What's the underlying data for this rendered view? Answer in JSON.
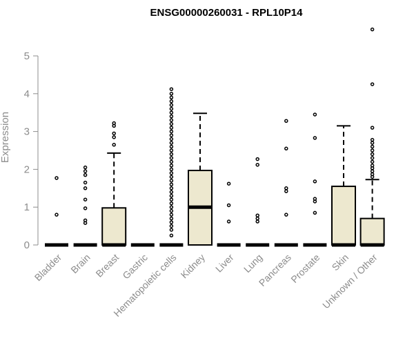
{
  "chart_data": {
    "type": "box",
    "title": "ENSG00000260031 - RPL10P14",
    "xlabel": "",
    "ylabel": "Expression",
    "ylim": [
      0,
      5.7
    ],
    "yticks": [
      "0",
      "1",
      "2",
      "3",
      "4",
      "5"
    ],
    "grid": false,
    "box_color": "#ede8cf",
    "categories": [
      "Bladder",
      "Brain",
      "Breast",
      "Gastric",
      "Hematopoietic cells",
      "Kidney",
      "Liver",
      "Lung",
      "Pancreas",
      "Prostate",
      "Skin",
      "Unknown / Other"
    ],
    "boxes": [
      {
        "q1": 0,
        "median": 0,
        "q3": 0,
        "whisker_low": 0,
        "whisker_high": 0,
        "outliers": [
          0.8,
          1.77
        ]
      },
      {
        "q1": 0,
        "median": 0,
        "q3": 0,
        "whisker_low": 0,
        "whisker_high": 0,
        "outliers": [
          0.58,
          0.65,
          0.97,
          1.2,
          1.5,
          1.65,
          1.85,
          1.95,
          2.05
        ]
      },
      {
        "q1": 0,
        "median": 0,
        "q3": 0.98,
        "whisker_low": 0,
        "whisker_high": 2.43,
        "outliers": [
          2.65,
          2.85,
          2.95,
          3.15,
          3.22
        ]
      },
      {
        "q1": 0,
        "median": 0,
        "q3": 0,
        "whisker_low": 0,
        "whisker_high": 0,
        "outliers": []
      },
      {
        "q1": 0,
        "median": 0,
        "q3": 0,
        "whisker_low": 0,
        "whisker_high": 0,
        "outliers": [
          0.25,
          0.4,
          0.5,
          0.6,
          0.7,
          0.8,
          0.9,
          1.0,
          1.1,
          1.2,
          1.3,
          1.4,
          1.5,
          1.6,
          1.7,
          1.8,
          1.9,
          2.0,
          2.1,
          2.2,
          2.3,
          2.4,
          2.5,
          2.6,
          2.7,
          2.8,
          2.9,
          3.0,
          3.1,
          3.2,
          3.3,
          3.4,
          3.5,
          3.6,
          3.7,
          3.8,
          3.9,
          4.0,
          4.12
        ]
      },
      {
        "q1": 0,
        "median": 1.0,
        "q3": 1.97,
        "whisker_low": 0,
        "whisker_high": 3.48,
        "outliers": []
      },
      {
        "q1": 0,
        "median": 0,
        "q3": 0,
        "whisker_low": 0,
        "whisker_high": 0,
        "outliers": [
          0.62,
          1.05,
          1.62
        ]
      },
      {
        "q1": 0,
        "median": 0,
        "q3": 0,
        "whisker_low": 0,
        "whisker_high": 0,
        "outliers": [
          0.62,
          0.7,
          0.78,
          2.12,
          2.27
        ]
      },
      {
        "q1": 0,
        "median": 0,
        "q3": 0,
        "whisker_low": 0,
        "whisker_high": 0,
        "outliers": [
          0.8,
          1.42,
          1.5,
          2.55,
          3.28
        ]
      },
      {
        "q1": 0,
        "median": 0,
        "q3": 0,
        "whisker_low": 0,
        "whisker_high": 0,
        "outliers": [
          0.85,
          1.15,
          1.22,
          1.68,
          2.83,
          3.45
        ]
      },
      {
        "q1": 0,
        "median": 0,
        "q3": 1.55,
        "whisker_low": 0,
        "whisker_high": 3.15,
        "outliers": []
      },
      {
        "q1": 0,
        "median": 0,
        "q3": 0.7,
        "whisker_low": 0,
        "whisker_high": 1.73,
        "outliers": [
          1.8,
          1.87,
          1.95,
          2.03,
          2.1,
          2.2,
          2.3,
          2.4,
          2.5,
          2.6,
          2.7,
          2.78,
          3.1,
          4.25,
          5.7
        ]
      }
    ]
  }
}
